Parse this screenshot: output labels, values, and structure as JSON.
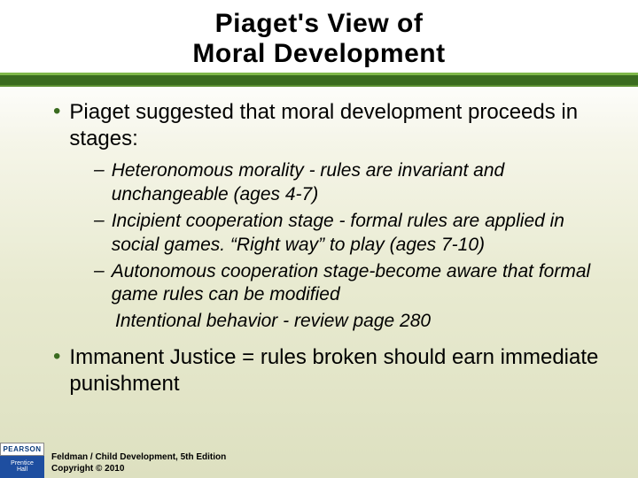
{
  "title": {
    "line1": "Piaget's View of",
    "line2": "Moral Development",
    "fontsize": 30,
    "color": "#000000"
  },
  "accent_bar": {
    "bg_color": "#3a6b1f",
    "highlight_color": "#7fb84a"
  },
  "bullets": {
    "l1_fontsize": 24,
    "l2_fontsize": 21,
    "dot_color": "#3a6b1f",
    "main1": "Piaget suggested that moral development proceeds in stages:",
    "sub1": "Heteronomous morality - rules are invariant and unchangeable (ages 4-7)",
    "sub2": "Incipient cooperation stage  - formal rules are applied in social games.  “Right way”  to play (ages 7-10)",
    "sub3": "Autonomous cooperation stage-become aware that formal game rules can be modified",
    "sub_line": "Intentional  behavior  - review page 280",
    "main2": "Immanent Justice = rules broken should earn immediate punishment"
  },
  "footer": {
    "logo1": "PEARSON",
    "logo2_l1": "Prentice",
    "logo2_l2": "Hall",
    "text_l1": "Feldman / Child Development, 5th Edition",
    "text_l2": "Copyright © 2010",
    "fontsize": 10
  },
  "background": {
    "gradient_top": "#ffffff",
    "gradient_bottom": "#dde0c0"
  }
}
